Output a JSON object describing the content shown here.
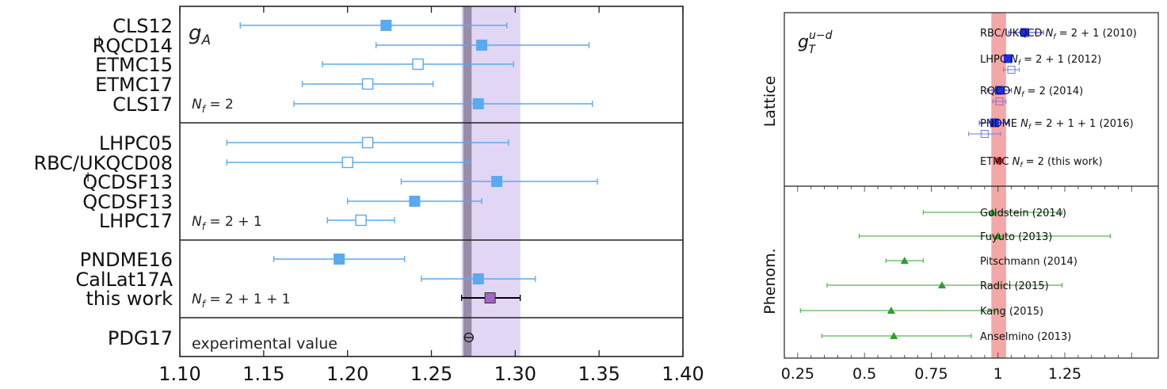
{
  "chart_data": [
    {
      "type": "scatter",
      "title": "g_A",
      "title_main": "g",
      "title_sub": "A",
      "xlim": [
        1.1,
        1.4
      ],
      "xticks": [
        "1.10",
        "1.15",
        "1.20",
        "1.25",
        "1.30",
        "1.35",
        "1.40"
      ],
      "xtick_values": [
        1.1,
        1.15,
        1.2,
        1.25,
        1.3,
        1.35,
        1.4
      ],
      "band": {
        "center": 1.2725,
        "lo": 1.269,
        "hi": 1.274,
        "color": "#8b7f9b"
      },
      "purple_band": {
        "lo": 1.268,
        "hi": 1.303,
        "color": "#e2d6f5"
      },
      "groups": [
        {
          "label": "N_f = 2",
          "label_prefix": "N",
          "label_sub": "f",
          "label_suffix": " = 2",
          "entries": [
            {
              "name": "CLS12",
              "dagger": false,
              "value": 1.223,
              "err_lo": 1.136,
              "err_hi": 1.295,
              "filled": true,
              "color": "#5aaaf0"
            },
            {
              "name": "RQCD14",
              "dagger": true,
              "value": 1.28,
              "err_lo": 1.217,
              "err_hi": 1.344,
              "filled": true,
              "color": "#5aaaf0"
            },
            {
              "name": "ETMC15",
              "dagger": false,
              "value": 1.242,
              "err_lo": 1.185,
              "err_hi": 1.299,
              "filled": false,
              "color": "#5aaaf0"
            },
            {
              "name": "ETMC17",
              "dagger": false,
              "value": 1.212,
              "err_lo": 1.173,
              "err_hi": 1.251,
              "filled": false,
              "color": "#5aaaf0"
            },
            {
              "name": "CLS17",
              "dagger": false,
              "value": 1.278,
              "err_lo": 1.168,
              "err_hi": 1.346,
              "filled": true,
              "color": "#5aaaf0"
            }
          ]
        },
        {
          "label": "N_f = 2 + 1",
          "label_prefix": "N",
          "label_sub": "f",
          "label_suffix": " = 2 + 1",
          "entries": [
            {
              "name": "LHPC05",
              "dagger": false,
              "value": 1.212,
              "err_lo": 1.128,
              "err_hi": 1.296,
              "filled": false,
              "color": "#5aaaf0"
            },
            {
              "name": "RBC/UKQCD08",
              "dagger": false,
              "value": 1.2,
              "err_lo": 1.128,
              "err_hi": 1.272,
              "filled": false,
              "color": "#5aaaf0"
            },
            {
              "name": "QCDSF13",
              "dagger": true,
              "value": 1.289,
              "err_lo": 1.232,
              "err_hi": 1.349,
              "filled": true,
              "color": "#5aaaf0"
            },
            {
              "name": "QCDSF13",
              "dagger": false,
              "value": 1.24,
              "err_lo": 1.2,
              "err_hi": 1.28,
              "filled": true,
              "color": "#5aaaf0"
            },
            {
              "name": "LHPC17",
              "dagger": false,
              "value": 1.208,
              "err_lo": 1.188,
              "err_hi": 1.228,
              "filled": false,
              "color": "#5aaaf0"
            }
          ]
        },
        {
          "label": "N_f = 2 + 1 + 1",
          "label_prefix": "N",
          "label_sub": "f",
          "label_suffix": " = 2 + 1 + 1",
          "entries": [
            {
              "name": "PNDME16",
              "dagger": false,
              "value": 1.195,
              "err_lo": 1.156,
              "err_hi": 1.234,
              "filled": true,
              "color": "#5aaaf0"
            },
            {
              "name": "CalLat17A",
              "dagger": false,
              "value": 1.278,
              "err_lo": 1.244,
              "err_hi": 1.312,
              "filled": true,
              "color": "#5aaaf0"
            },
            {
              "name": "this work",
              "dagger": false,
              "value": 1.285,
              "err_lo": 1.268,
              "err_hi": 1.303,
              "filled": true,
              "color": "#a266c8",
              "err_color": "#000000"
            }
          ]
        },
        {
          "label": "experimental value",
          "entries": [
            {
              "name": "PDG17",
              "dagger": false,
              "value": 1.2723,
              "err_lo": 1.2701,
              "err_hi": 1.2745,
              "marker": "theta"
            }
          ]
        }
      ]
    },
    {
      "type": "scatter",
      "title": "g_T^{u-d}",
      "title_main": "g",
      "title_sub": "T",
      "title_sup": "u−d",
      "xlim": [
        0.2,
        1.6
      ],
      "xticks": [
        "0.25",
        "0.5",
        "0.75",
        "1",
        "1.25"
      ],
      "xtick_values": [
        0.25,
        0.5,
        0.75,
        1.0,
        1.25
      ],
      "band": {
        "lo": 0.975,
        "hi": 1.03,
        "color": "#f4a7a7"
      },
      "sections": [
        {
          "label": "Lattice",
          "entries": [
            {
              "name": "RBC/UKQCD N_f = 2 + 1 (2010)",
              "name_pre": "RBC/UKQCD ",
              "name_post": " = 2 + 1 (2010)",
              "points": [
                {
                  "value": 1.1,
                  "err_lo": 1.04,
                  "err_hi": 1.17,
                  "filled": true,
                  "marker": "square",
                  "color": "#1c2ff0"
                }
              ]
            },
            {
              "name": "LHPC N_f = 2 + 1 (2012)",
              "name_pre": "LHPC ",
              "name_post": " = 2 + 1 (2012)",
              "points": [
                {
                  "value": 1.038,
                  "err_lo": 1.028,
                  "err_hi": 1.048,
                  "filled": true,
                  "marker": "square",
                  "color": "#1c2ff0"
                },
                {
                  "value": 1.05,
                  "err_lo": 1.02,
                  "err_hi": 1.08,
                  "filled": false,
                  "marker": "square",
                  "color": "#6a7cf0"
                }
              ]
            },
            {
              "name": "RQCD N_f = 2 (2014)",
              "name_pre": "RQCD ",
              "name_post": " = 2 (2014)",
              "points": [
                {
                  "value": 1.005,
                  "err_lo": 0.96,
                  "err_hi": 1.05,
                  "filled": true,
                  "marker": "square",
                  "color": "#1c2ff0"
                },
                {
                  "value": 1.005,
                  "err_lo": 0.98,
                  "err_hi": 1.03,
                  "filled": false,
                  "marker": "square",
                  "color": "#8a6fd0"
                }
              ]
            },
            {
              "name": "PNDME N_f = 2 + 1 + 1 (2016)",
              "name_pre": "PNDME ",
              "name_post": " = 2 + 1 + 1 (2016)",
              "points": [
                {
                  "value": 0.987,
                  "err_lo": 0.93,
                  "err_hi": 1.04,
                  "filled": true,
                  "marker": "square",
                  "color": "#1c2ff0"
                },
                {
                  "value": 0.95,
                  "err_lo": 0.89,
                  "err_hi": 1.01,
                  "filled": false,
                  "marker": "square",
                  "color": "#6a7cf0"
                }
              ]
            },
            {
              "name": "ETMC N_f = 2 (this work)",
              "name_pre": "ETMC ",
              "name_post": " = 2 (this work)",
              "points": [
                {
                  "value": 1.004,
                  "err_lo": 0.995,
                  "err_hi": 1.013,
                  "filled": true,
                  "marker": "circle",
                  "color": "#e8161f"
                }
              ]
            }
          ]
        },
        {
          "label": "Phenom.",
          "entries": [
            {
              "name": "Goldstein (2014)",
              "points": [
                {
                  "value": 0.98,
                  "err_lo": 0.72,
                  "err_hi": 1.24,
                  "filled": true,
                  "marker": "triangle",
                  "color": "#2ca02c"
                }
              ]
            },
            {
              "name": "Fuyuto (2013)",
              "points": [
                {
                  "value": 1.0,
                  "err_lo": 0.48,
                  "err_hi": 1.42,
                  "filled": true,
                  "marker": "triangle",
                  "color": "#2ca02c"
                }
              ]
            },
            {
              "name": "Pitschmann (2014)",
              "points": [
                {
                  "value": 0.65,
                  "err_lo": 0.58,
                  "err_hi": 0.72,
                  "filled": true,
                  "marker": "triangle",
                  "color": "#2ca02c"
                }
              ]
            },
            {
              "name": "Radici (2015)",
              "points": [
                {
                  "value": 0.79,
                  "err_lo": 0.36,
                  "err_hi": 1.24,
                  "filled": true,
                  "marker": "triangle",
                  "color": "#2ca02c"
                }
              ]
            },
            {
              "name": "Kang (2015)",
              "points": [
                {
                  "value": 0.6,
                  "err_lo": 0.26,
                  "err_hi": 1.0,
                  "filled": true,
                  "marker": "triangle",
                  "color": "#2ca02c"
                }
              ]
            },
            {
              "name": "Anselmino (2013)",
              "points": [
                {
                  "value": 0.61,
                  "err_lo": 0.34,
                  "err_hi": 0.9,
                  "filled": true,
                  "marker": "triangle",
                  "color": "#2ca02c"
                }
              ]
            }
          ]
        }
      ]
    }
  ]
}
